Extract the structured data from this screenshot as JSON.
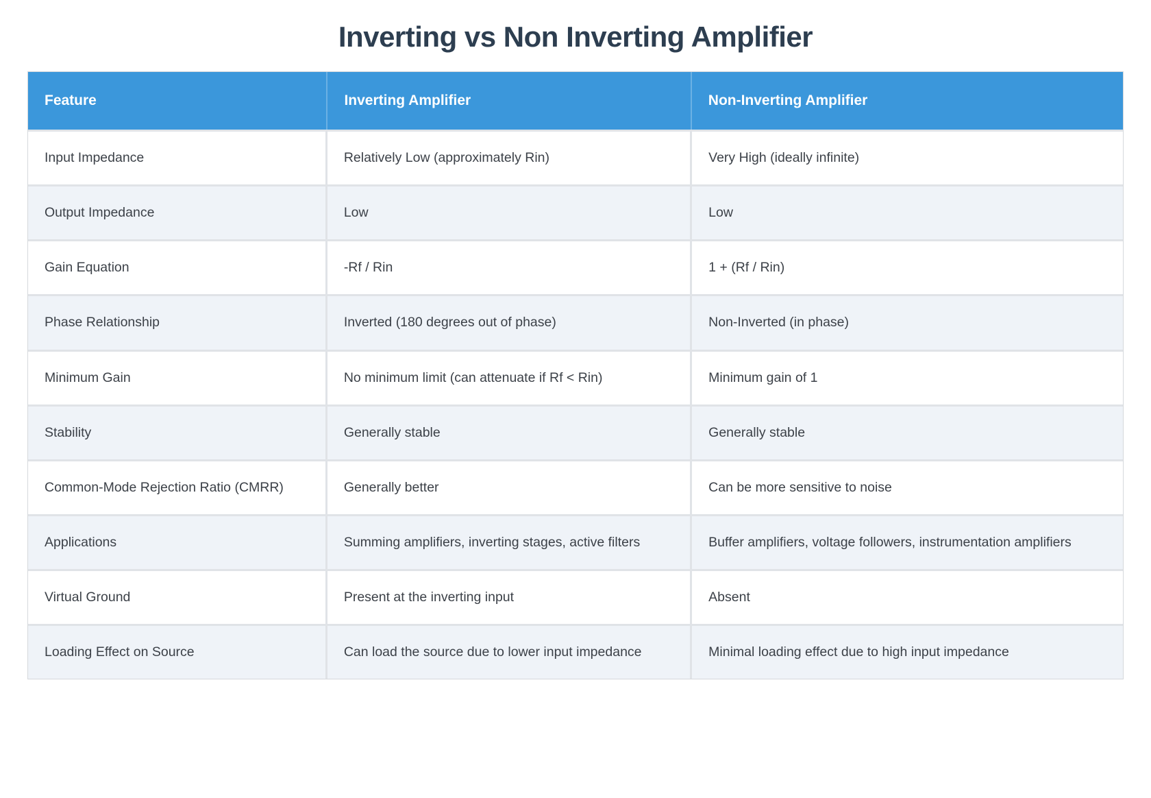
{
  "title": "Inverting vs Non Inverting Amplifier",
  "colors": {
    "header_bg": "#3b97db",
    "header_text": "#ffffff",
    "row_bg": "#ffffff",
    "row_alt_bg": "#eff3f8",
    "gutter": "#e0e3e7",
    "title_text": "#2d3e50",
    "cell_text": "#3c4148"
  },
  "table": {
    "columns": [
      "Feature",
      "Inverting Amplifier",
      "Non-Inverting Amplifier"
    ],
    "rows": [
      [
        "Input Impedance",
        "Relatively Low (approximately Rin)",
        "Very High (ideally infinite)"
      ],
      [
        "Output Impedance",
        "Low",
        "Low"
      ],
      [
        "Gain Equation",
        "-Rf / Rin",
        "1 + (Rf / Rin)"
      ],
      [
        "Phase Relationship",
        "Inverted (180 degrees out of phase)",
        "Non-Inverted (in phase)"
      ],
      [
        "Minimum Gain",
        "No minimum limit (can attenuate if Rf < Rin)",
        "Minimum gain of 1"
      ],
      [
        "Stability",
        "Generally stable",
        "Generally stable"
      ],
      [
        "Common-Mode Rejection Ratio (CMRR)",
        "Generally better",
        "Can be more sensitive to noise"
      ],
      [
        "Applications",
        "Summing amplifiers, inverting stages, active filters",
        "Buffer amplifiers, voltage followers, instrumentation amplifiers"
      ],
      [
        "Virtual Ground",
        "Present at the inverting input",
        "Absent"
      ],
      [
        "Loading Effect on Source",
        "Can load the source due to lower input impedance",
        "Minimal loading effect due to high input impedance"
      ]
    ]
  }
}
